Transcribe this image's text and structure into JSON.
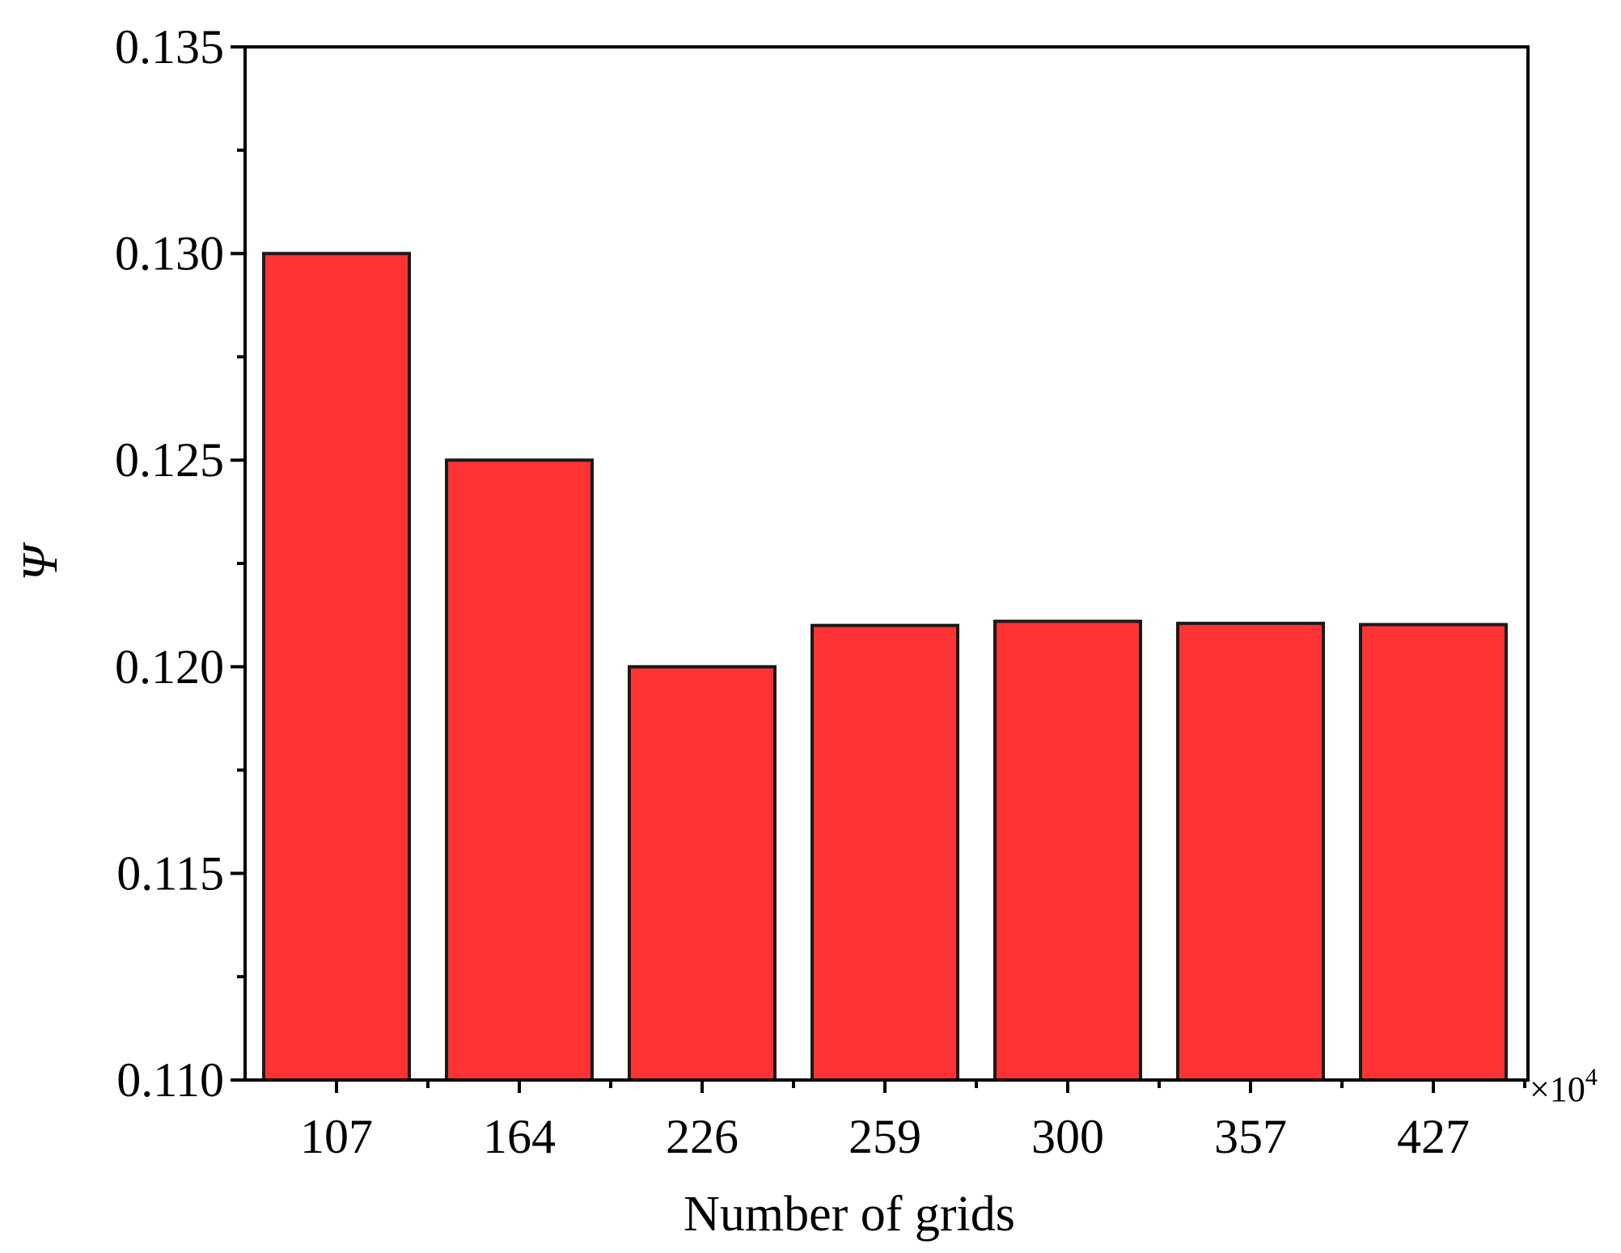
{
  "chart_data": {
    "type": "bar",
    "title": "",
    "xlabel": "Number of grids",
    "ylabel": "Ψ",
    "x_multiplier": {
      "base": "×10",
      "exponent": "4"
    },
    "categories": [
      "107",
      "164",
      "226",
      "259",
      "300",
      "357",
      "427"
    ],
    "values": [
      0.13,
      0.125,
      0.12,
      0.121,
      0.1211,
      0.12105,
      0.12102
    ],
    "ylim": [
      0.11,
      0.135
    ],
    "yticks": [
      "0.110",
      "0.115",
      "0.120",
      "0.125",
      "0.130",
      "0.135"
    ],
    "grid": false,
    "bar_color": "#ff3333",
    "edge_color": "#1a1a1a"
  }
}
